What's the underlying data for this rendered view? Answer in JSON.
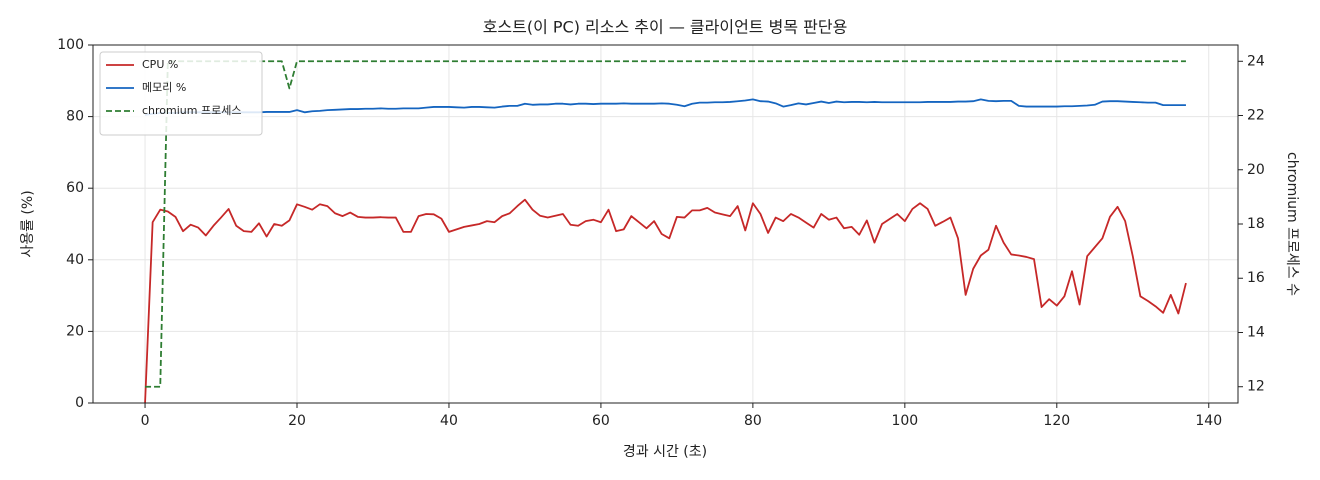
{
  "chart_data": {
    "type": "line",
    "title": "호스트(이 PC) 리소스 추이 — 클라이언트 병목 판단용",
    "xlabel": "경과 시간 (초)",
    "ylabel": "사용률 (%)",
    "y2label": "chromium 프로세스 수",
    "x": [
      0,
      1,
      2,
      3,
      4,
      5,
      6,
      7,
      8,
      9,
      10,
      11,
      12,
      13,
      14,
      15,
      16,
      17,
      18,
      19,
      20,
      21,
      22,
      23,
      24,
      25,
      26,
      27,
      28,
      29,
      30,
      31,
      32,
      33,
      34,
      35,
      36,
      37,
      38,
      39,
      40,
      41,
      42,
      43,
      44,
      45,
      46,
      47,
      48,
      49,
      50,
      51,
      52,
      53,
      54,
      55,
      56,
      57,
      58,
      59,
      60,
      61,
      62,
      63,
      64,
      65,
      66,
      67,
      68,
      69,
      70,
      71,
      72,
      73,
      74,
      75,
      76,
      77,
      78,
      79,
      80,
      81,
      82,
      83,
      84,
      85,
      86,
      87,
      88,
      89,
      90,
      91,
      92,
      93,
      94,
      95,
      96,
      97,
      98,
      99,
      100,
      101,
      102,
      103,
      104,
      105,
      106,
      107,
      108,
      109,
      110,
      111,
      112,
      113,
      114,
      115,
      116,
      117,
      118,
      119,
      120,
      121,
      122,
      123,
      124,
      125,
      126,
      127,
      128,
      129,
      130,
      131,
      132,
      133,
      134,
      135,
      136,
      137
    ],
    "series": [
      {
        "name": "CPU %",
        "color": "#c62828",
        "values": [
          0,
          50.5,
          54,
          53.5,
          52,
          48,
          49.8,
          49,
          46.8,
          49.5,
          51.8,
          54.2,
          49.5,
          48,
          47.8,
          50.2,
          46.5,
          50,
          49.5,
          51,
          55.5,
          54.8,
          54,
          55.5,
          55,
          53,
          52.2,
          53.2,
          52,
          51.8,
          51.8,
          51.9,
          51.8,
          51.8,
          47.8,
          47.8,
          52.2,
          52.8,
          52.7,
          51.5,
          47.8,
          48.5,
          49.2,
          49.6,
          50,
          50.8,
          50.5,
          52.2,
          53,
          55,
          56.8,
          54,
          52.3,
          51.8,
          52.3,
          52.8,
          49.8,
          49.5,
          50.8,
          51.2,
          50.5,
          54,
          48,
          48.5,
          52.2,
          50.5,
          48.8,
          50.8,
          47.2,
          46,
          52,
          51.8,
          53.8,
          53.8,
          54.5,
          53.2,
          52.7,
          52.2,
          55,
          48.2,
          55.8,
          52.8,
          47.5,
          51.8,
          50.8,
          52.8,
          51.8,
          50.4,
          49,
          52.8,
          51.2,
          51.8,
          48.8,
          49.2,
          47,
          51,
          44.8,
          50,
          51.4,
          52.8,
          50.8,
          54.2,
          55.8,
          54.2,
          49.5,
          50.6,
          51.8,
          46,
          30.2,
          37.5,
          41.2,
          42.8,
          49.5,
          44.8,
          41.5,
          41.2,
          40.8,
          40.2,
          26.8,
          29,
          27.2,
          29.8,
          36.8,
          27.5,
          41,
          43.5,
          46,
          52,
          54.8,
          50.8,
          41,
          29.8,
          28.5,
          27,
          25.2,
          30.2,
          25,
          33.5
        ]
      },
      {
        "name": "메모리 %",
        "color": "#1565c0",
        "values": [
          80.5,
          80.8,
          81,
          81,
          81,
          81.2,
          81.2,
          81.2,
          81.2,
          81.2,
          81.2,
          81.2,
          81.2,
          81.2,
          81.2,
          81.2,
          81.3,
          81.3,
          81.3,
          81.3,
          81.8,
          81.2,
          81.5,
          81.6,
          81.8,
          81.9,
          82,
          82.1,
          82.1,
          82.2,
          82.2,
          82.3,
          82.2,
          82.2,
          82.3,
          82.3,
          82.3,
          82.5,
          82.7,
          82.7,
          82.7,
          82.6,
          82.5,
          82.7,
          82.7,
          82.6,
          82.5,
          82.8,
          83,
          83,
          83.6,
          83.3,
          83.4,
          83.4,
          83.6,
          83.6,
          83.4,
          83.6,
          83.6,
          83.5,
          83.6,
          83.6,
          83.6,
          83.7,
          83.6,
          83.6,
          83.6,
          83.6,
          83.7,
          83.6,
          83.3,
          82.9,
          83.6,
          83.9,
          83.9,
          84,
          84,
          84.1,
          84.3,
          84.5,
          84.8,
          84.3,
          84.2,
          83.7,
          82.8,
          83.2,
          83.7,
          83.4,
          83.8,
          84.2,
          83.8,
          84.2,
          84,
          84.1,
          84.1,
          84,
          84.1,
          84,
          84,
          84,
          84,
          84,
          84,
          84.1,
          84.1,
          84.1,
          84.1,
          84.2,
          84.2,
          84.3,
          84.8,
          84.4,
          84.3,
          84.4,
          84.4,
          83,
          82.8,
          82.8,
          82.8,
          82.8,
          82.8,
          82.9,
          82.9,
          83,
          83.1,
          83.3,
          84.2,
          84.3,
          84.3,
          84.2,
          84.1,
          84,
          83.9,
          83.9,
          83.2,
          83.2,
          83.2,
          83.2
        ]
      },
      {
        "name": "chromium 프로세스",
        "color": "#2e7d32",
        "axis": "y2",
        "linestyle": "dashed",
        "values": [
          12,
          12,
          12,
          24,
          24,
          24,
          24,
          24,
          24,
          24,
          24,
          24,
          24,
          24,
          24,
          24,
          24,
          24,
          24,
          23,
          24,
          24,
          24,
          24,
          24,
          24,
          24,
          24,
          24,
          24,
          24,
          24,
          24,
          24,
          24,
          24,
          24,
          24,
          24,
          24,
          24,
          24,
          24,
          24,
          24,
          24,
          24,
          24,
          24,
          24,
          24,
          24,
          24,
          24,
          24,
          24,
          24,
          24,
          24,
          24,
          24,
          24,
          24,
          24,
          24,
          24,
          24,
          24,
          24,
          24,
          24,
          24,
          24,
          24,
          24,
          24,
          24,
          24,
          24,
          24,
          24,
          24,
          24,
          24,
          24,
          24,
          24,
          24,
          24,
          24,
          24,
          24,
          24,
          24,
          24,
          24,
          24,
          24,
          24,
          24,
          24,
          24,
          24,
          24,
          24,
          24,
          24,
          24,
          24,
          24,
          24,
          24,
          24,
          24,
          24,
          24,
          24,
          24,
          24,
          24,
          24,
          24,
          24,
          24,
          24,
          24,
          24,
          24,
          24,
          24,
          24,
          24,
          24,
          24,
          24,
          24,
          24,
          24
        ]
      }
    ],
    "xlim": [
      -6.85,
      143.85
    ],
    "ylim": [
      0,
      100
    ],
    "y2lim": [
      11.4,
      24.6
    ],
    "xticks": [
      0,
      20,
      40,
      60,
      80,
      100,
      120,
      140
    ],
    "yticks": [
      0,
      20,
      40,
      60,
      80,
      100
    ],
    "y2ticks": [
      12,
      14,
      16,
      18,
      20,
      22,
      24
    ],
    "grid": true,
    "legend": "upper left"
  }
}
